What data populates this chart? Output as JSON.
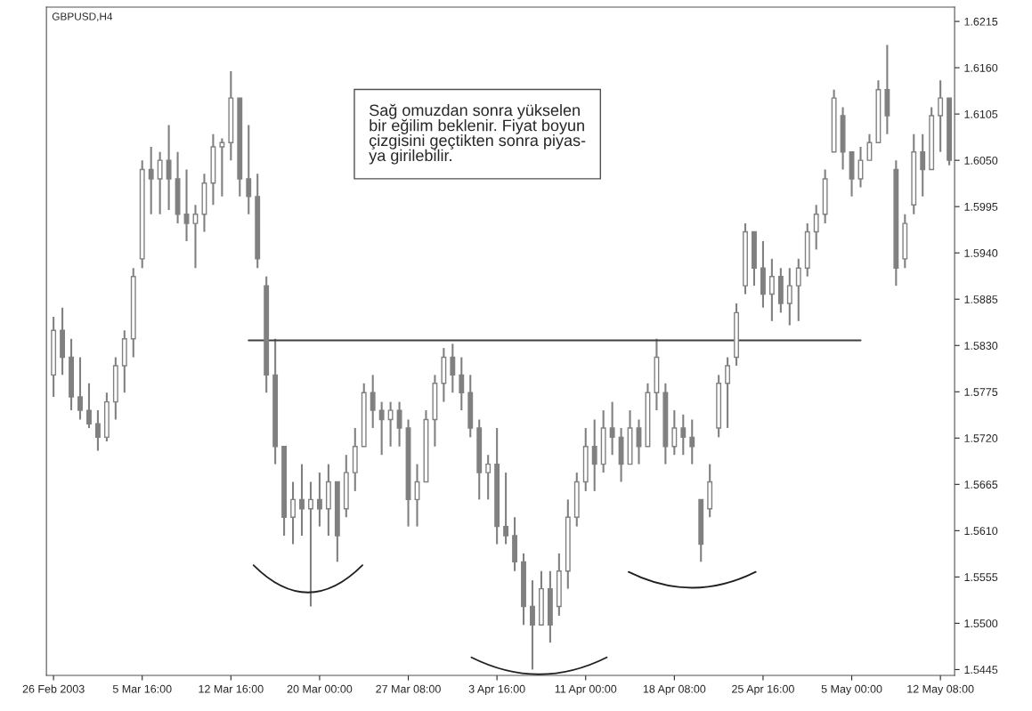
{
  "chart_data": {
    "type": "candlestick",
    "title": "GBPUSD,H4",
    "categories": [
      "26 Feb 2003",
      null,
      null,
      null,
      null,
      null,
      null,
      null,
      null,
      null,
      "5 Mar 16:00",
      null,
      null,
      null,
      null,
      null,
      null,
      null,
      null,
      null,
      "12 Mar 16:00",
      null,
      null,
      null,
      null,
      null,
      null,
      null,
      null,
      null,
      "20 Mar 00:00",
      null,
      null,
      null,
      null,
      null,
      null,
      null,
      null,
      null,
      "27 Mar 08:00",
      null,
      null,
      null,
      null,
      null,
      null,
      null,
      null,
      null,
      "3 Apr 16:00",
      null,
      null,
      null,
      null,
      null,
      null,
      null,
      null,
      null,
      "11 Apr 00:00",
      null,
      null,
      null,
      null,
      null,
      null,
      null,
      null,
      null,
      "18 Apr 08:00",
      null,
      null,
      null,
      null,
      null,
      null,
      null,
      null,
      null,
      "25 Apr 16:00",
      null,
      null,
      null,
      null,
      null,
      null,
      null,
      null,
      null,
      "5 May 00:00",
      null,
      null,
      null,
      null,
      null,
      null,
      null,
      null,
      null,
      "12 May 08:00",
      null
    ],
    "ohlc": [
      [
        1.5795,
        1.5864,
        1.5769,
        1.5848
      ],
      [
        1.5848,
        1.5875,
        1.5795,
        1.5816
      ],
      [
        1.5816,
        1.5838,
        1.5753,
        1.5769
      ],
      [
        1.5769,
        1.5816,
        1.5742,
        1.5753
      ],
      [
        1.5753,
        1.5785,
        1.5732,
        1.5737
      ],
      [
        1.5737,
        1.5753,
        1.5705,
        1.5721
      ],
      [
        1.5721,
        1.5774,
        1.5716,
        1.5763
      ],
      [
        1.5763,
        1.5816,
        1.5742,
        1.5806
      ],
      [
        1.5806,
        1.5848,
        1.5774,
        1.5838
      ],
      [
        1.5838,
        1.5922,
        1.5816,
        1.5912
      ],
      [
        1.5933,
        1.605,
        1.5922,
        1.6039
      ],
      [
        1.6039,
        1.6066,
        1.5986,
        1.6028
      ],
      [
        1.6028,
        1.606,
        1.5986,
        1.605
      ],
      [
        1.605,
        1.6092,
        1.5991,
        1.6028
      ],
      [
        1.6028,
        1.606,
        1.5975,
        1.5986
      ],
      [
        1.5986,
        1.6039,
        1.5954,
        1.5975
      ],
      [
        1.5975,
        1.5997,
        1.5922,
        1.5986
      ],
      [
        1.5986,
        1.6034,
        1.5965,
        1.6023
      ],
      [
        1.6023,
        1.6081,
        1.5997,
        1.6066
      ],
      [
        1.6066,
        1.6076,
        1.6007,
        1.6071
      ],
      [
        1.6071,
        1.6156,
        1.605,
        1.6124
      ],
      [
        1.6124,
        1.6124,
        1.6007,
        1.6028
      ],
      [
        1.6028,
        1.6092,
        1.5986,
        1.6007
      ],
      [
        1.6007,
        1.6034,
        1.5922,
        1.5933
      ],
      [
        1.5901,
        1.5912,
        1.5774,
        1.5795
      ],
      [
        1.5795,
        1.5838,
        1.5689,
        1.571
      ],
      [
        1.571,
        1.571,
        1.5604,
        1.5626
      ],
      [
        1.5626,
        1.5668,
        1.5594,
        1.5647
      ],
      [
        1.5647,
        1.5689,
        1.5604,
        1.5636
      ],
      [
        1.5636,
        1.5668,
        1.552,
        1.5647
      ],
      [
        1.5647,
        1.5679,
        1.5615,
        1.5636
      ],
      [
        1.5636,
        1.5689,
        1.5604,
        1.5668
      ],
      [
        1.5668,
        1.5668,
        1.5573,
        1.5604
      ],
      [
        1.5636,
        1.57,
        1.5626,
        1.5679
      ],
      [
        1.5679,
        1.5732,
        1.5657,
        1.571
      ],
      [
        1.571,
        1.5785,
        1.571,
        1.5774
      ],
      [
        1.5774,
        1.5795,
        1.5732,
        1.5753
      ],
      [
        1.5753,
        1.5763,
        1.57,
        1.5742
      ],
      [
        1.5742,
        1.5763,
        1.571,
        1.5753
      ],
      [
        1.5753,
        1.5763,
        1.571,
        1.5732
      ],
      [
        1.5732,
        1.5742,
        1.5615,
        1.5647
      ],
      [
        1.5647,
        1.5689,
        1.5615,
        1.5668
      ],
      [
        1.5668,
        1.5753,
        1.5668,
        1.5742
      ],
      [
        1.5742,
        1.5795,
        1.571,
        1.5785
      ],
      [
        1.5785,
        1.5827,
        1.5763,
        1.5816
      ],
      [
        1.5816,
        1.5832,
        1.5774,
        1.5795
      ],
      [
        1.5795,
        1.5816,
        1.5753,
        1.5774
      ],
      [
        1.5774,
        1.5795,
        1.5721,
        1.5732
      ],
      [
        1.5732,
        1.5742,
        1.5647,
        1.5679
      ],
      [
        1.5679,
        1.57,
        1.5647,
        1.5689
      ],
      [
        1.5689,
        1.5732,
        1.5594,
        1.5615
      ],
      [
        1.5615,
        1.5679,
        1.5594,
        1.5604
      ],
      [
        1.5604,
        1.5626,
        1.5562,
        1.5573
      ],
      [
        1.5573,
        1.5583,
        1.5498,
        1.552
      ],
      [
        1.552,
        1.5551,
        1.5445,
        1.5498
      ],
      [
        1.5498,
        1.5562,
        1.5498,
        1.5541
      ],
      [
        1.5541,
        1.5562,
        1.5477,
        1.5498
      ],
      [
        1.552,
        1.5583,
        1.5509,
        1.5562
      ],
      [
        1.5562,
        1.5647,
        1.5541,
        1.5626
      ],
      [
        1.5626,
        1.5679,
        1.5615,
        1.5668
      ],
      [
        1.5668,
        1.5732,
        1.5657,
        1.571
      ],
      [
        1.571,
        1.5742,
        1.5657,
        1.5689
      ],
      [
        1.5689,
        1.5753,
        1.5679,
        1.5732
      ],
      [
        1.5732,
        1.5763,
        1.57,
        1.5721
      ],
      [
        1.5721,
        1.5732,
        1.5668,
        1.5689
      ],
      [
        1.5689,
        1.5753,
        1.5689,
        1.5732
      ],
      [
        1.5732,
        1.5742,
        1.5689,
        1.571
      ],
      [
        1.571,
        1.5785,
        1.571,
        1.5774
      ],
      [
        1.5774,
        1.5838,
        1.5753,
        1.5816
      ],
      [
        1.5774,
        1.5785,
        1.5689,
        1.571
      ],
      [
        1.571,
        1.5753,
        1.57,
        1.5732
      ],
      [
        1.5732,
        1.5748,
        1.57,
        1.5721
      ],
      [
        1.5721,
        1.5742,
        1.5689,
        1.571
      ],
      [
        1.5647,
        1.5647,
        1.5573,
        1.5594
      ],
      [
        1.5636,
        1.5689,
        1.5626,
        1.5668
      ],
      [
        1.5732,
        1.5795,
        1.5721,
        1.5785
      ],
      [
        1.5785,
        1.5816,
        1.5732,
        1.5806
      ],
      [
        1.5816,
        1.588,
        1.5806,
        1.5869
      ],
      [
        1.5901,
        1.5975,
        1.5891,
        1.5965
      ],
      [
        1.5965,
        1.5965,
        1.5901,
        1.5922
      ],
      [
        1.5922,
        1.5954,
        1.5875,
        1.5891
      ],
      [
        1.5891,
        1.5933,
        1.5859,
        1.5912
      ],
      [
        1.5912,
        1.5922,
        1.5869,
        1.588
      ],
      [
        1.588,
        1.5922,
        1.5854,
        1.5901
      ],
      [
        1.5901,
        1.5933,
        1.5859,
        1.5922
      ],
      [
        1.5922,
        1.5975,
        1.5912,
        1.5965
      ],
      [
        1.5965,
        1.5997,
        1.5944,
        1.5986
      ],
      [
        1.5986,
        1.6039,
        1.5975,
        1.6028
      ],
      [
        1.606,
        1.6134,
        1.606,
        1.6124
      ],
      [
        1.6103,
        1.6113,
        1.6039,
        1.606
      ],
      [
        1.606,
        1.606,
        1.6007,
        1.6028
      ],
      [
        1.6028,
        1.6066,
        1.6018,
        1.605
      ],
      [
        1.605,
        1.6081,
        1.605,
        1.6071
      ],
      [
        1.6071,
        1.6145,
        1.6071,
        1.6134
      ],
      [
        1.6134,
        1.6187,
        1.6081,
        1.6103
      ],
      [
        1.6039,
        1.605,
        1.5901,
        1.5922
      ],
      [
        1.5933,
        1.5986,
        1.5922,
        1.5975
      ],
      [
        1.5997,
        1.6081,
        1.5986,
        1.606
      ],
      [
        1.606,
        1.6081,
        1.6007,
        1.6039
      ],
      [
        1.6039,
        1.6113,
        1.6039,
        1.6103
      ],
      [
        1.6103,
        1.6145,
        1.606,
        1.6124
      ],
      [
        1.6124,
        1.6124,
        1.6044,
        1.605
      ]
    ],
    "color": "#808080",
    "series": [
      {
        "type": "line",
        "color": "#404040",
        "values": [
          null,
          null,
          null,
          null,
          null,
          null,
          null,
          null,
          null,
          null,
          null,
          null,
          null,
          null,
          null,
          null,
          null,
          null,
          null,
          null,
          null,
          null,
          1.5836,
          1.5836,
          1.5836,
          1.5836,
          1.5836,
          1.5836,
          1.5836,
          1.5836,
          1.5836,
          1.5836,
          1.5836,
          1.5836,
          1.5836,
          1.5836,
          1.5836,
          1.5836,
          1.5836,
          1.5836,
          1.5836,
          1.5836,
          1.5836,
          1.5836,
          1.5836,
          1.5836,
          1.5836,
          1.5836,
          1.5836,
          1.5836,
          1.5836,
          1.5836,
          1.5836,
          1.5836,
          1.5836,
          1.5836,
          1.5836,
          1.5836,
          1.5836,
          1.5836,
          1.5836,
          1.5836,
          1.5836,
          1.5836,
          1.5836,
          1.5836,
          1.5836,
          1.5836,
          1.5836,
          1.5836,
          1.5836,
          1.5836,
          1.5836,
          1.5836,
          1.5836,
          1.5836,
          1.5836,
          1.5836,
          1.5836,
          1.5836,
          1.5836,
          1.5836,
          1.5836,
          1.5836,
          1.5836,
          1.5836,
          1.5836,
          1.5836,
          1.5836,
          1.5836,
          1.5836,
          1.5836,
          null,
          null,
          null,
          null,
          null,
          null,
          null,
          null,
          null,
          null
        ]
      }
    ],
    "ylim": [
      1.5438,
      1.6232
    ],
    "yticks": [
      1.5445,
      {
        "value": 1.55,
        "label": "1.5500"
      },
      1.5555,
      {
        "value": 1.561,
        "label": "1.5610"
      },
      1.5665,
      {
        "value": 1.572,
        "label": "1.5720"
      },
      1.5775,
      {
        "value": 1.583,
        "label": "1.5830"
      },
      1.5885,
      {
        "value": 1.594,
        "label": "1.5940"
      },
      1.5995,
      {
        "value": 1.605,
        "label": "1.6050"
      },
      1.6105,
      {
        "value": 1.616,
        "label": "1.6160"
      },
      1.6215
    ],
    "annotations": [
      "Sağ omuzdan sonra yükselen\nbir eğilim beklenir. Fiyat boyun\nçizgisini geçtikten sonra piyas-\nya girilebilir."
    ],
    "grid": false
  }
}
